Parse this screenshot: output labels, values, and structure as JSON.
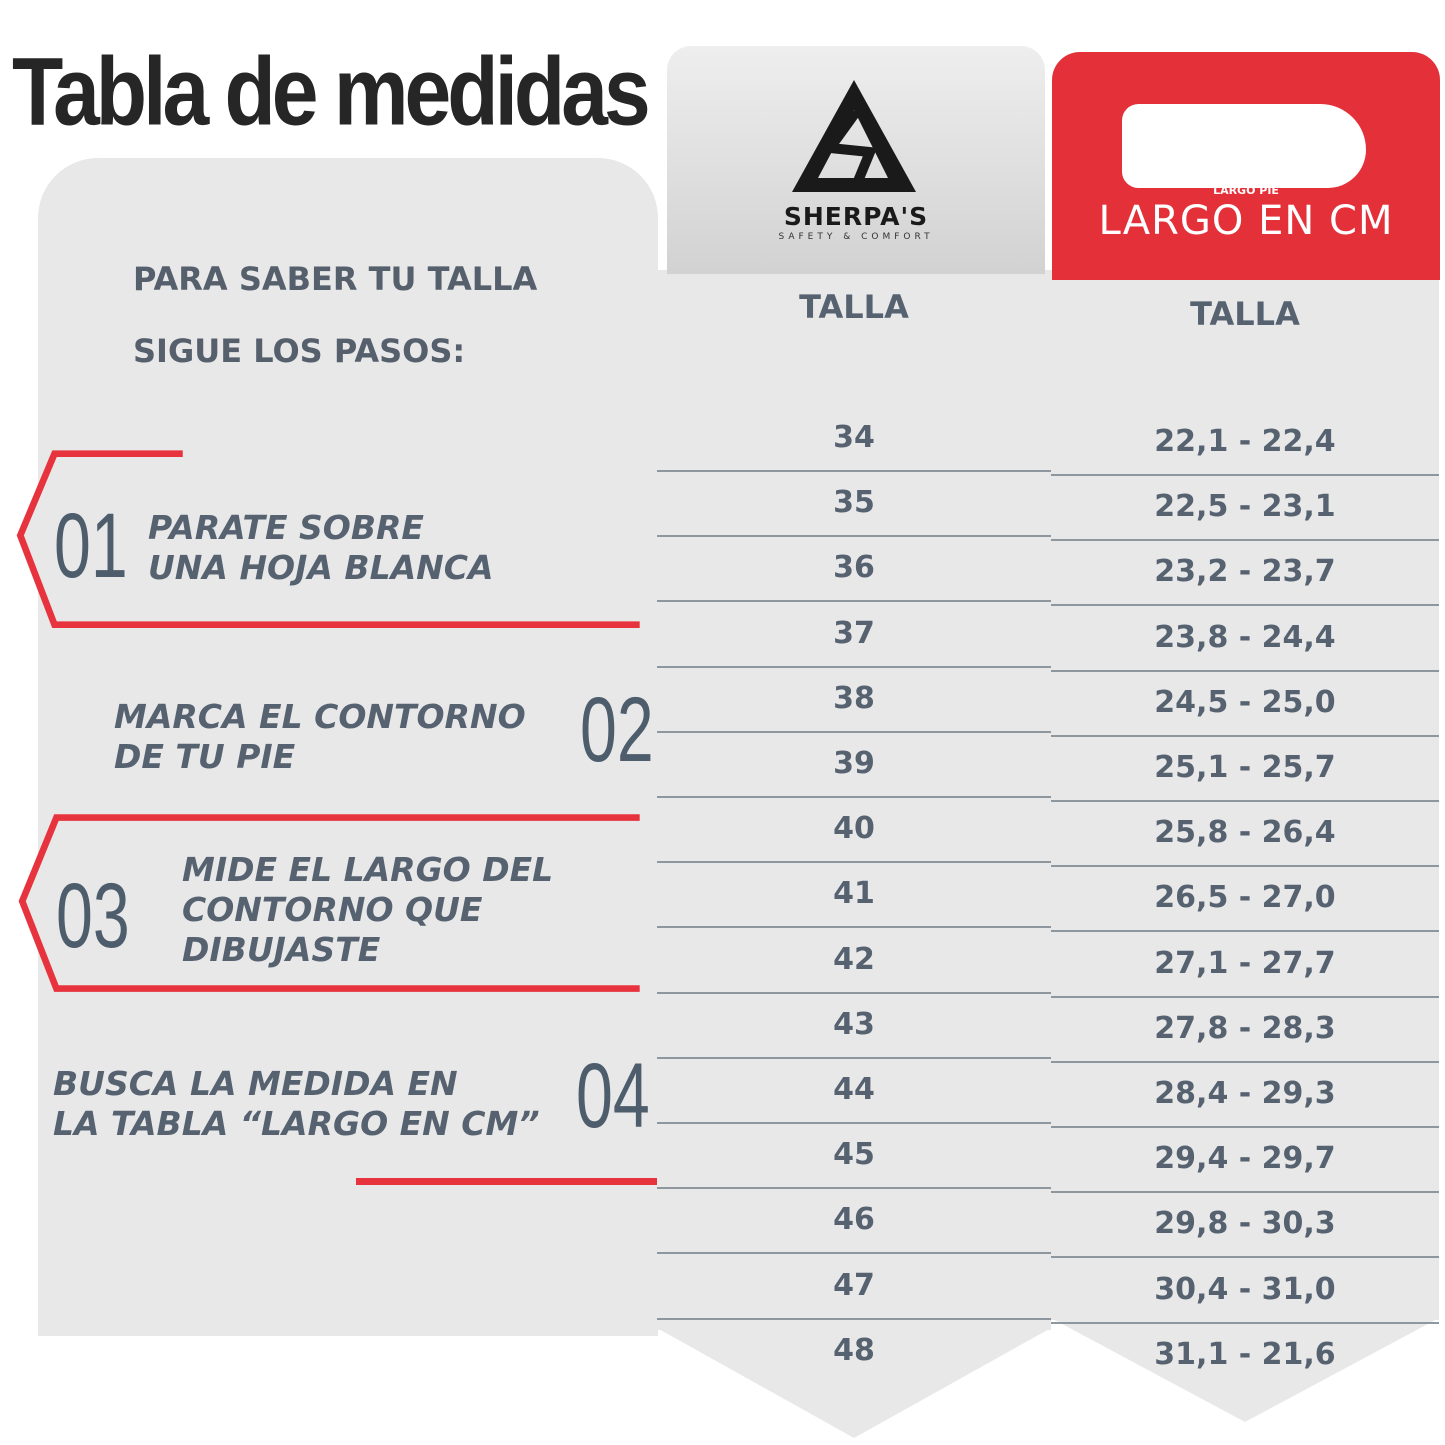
{
  "title": "Tabla de medidas",
  "intro": {
    "line1": "PARA SABER TU TALLA",
    "line2": "SIGUE LOS PASOS:"
  },
  "steps": [
    {
      "number": "01",
      "line1": "PARATE SOBRE",
      "line2": "UNA HOJA BLANCA"
    },
    {
      "number": "02",
      "line1": "MARCA EL CONTORNO",
      "line2": "DE TU PIE"
    },
    {
      "number": "03",
      "line1": "MIDE EL LARGO DEL",
      "line2": "CONTORNO QUE",
      "line3": "DIBUJASTE"
    },
    {
      "number": "04",
      "line1": "BUSCA LA MEDIDA EN",
      "line2": "LA TABLA “LARGO EN CM”"
    }
  ],
  "logo": {
    "icon": "sherpas-triangle-logo-icon",
    "name": "SHERPA'S",
    "tagline": "SAFETY & COMFORT"
  },
  "largo_header": {
    "icon": "foot-outline-icon",
    "small": "LARGO PIE",
    "title": "LARGO EN CM"
  },
  "table": {
    "col1_header": "TALLA",
    "col2_header": "TALLA",
    "rows": [
      {
        "talla": "34",
        "largo": "22,1 - 22,4"
      },
      {
        "talla": "35",
        "largo": "22,5 - 23,1"
      },
      {
        "talla": "36",
        "largo": "23,2 - 23,7"
      },
      {
        "talla": "37",
        "largo": "23,8 - 24,4"
      },
      {
        "talla": "38",
        "largo": "24,5 - 25,0"
      },
      {
        "talla": "39",
        "largo": "25,1 - 25,7"
      },
      {
        "talla": "40",
        "largo": "25,8 - 26,4"
      },
      {
        "talla": "41",
        "largo": "26,5 - 27,0"
      },
      {
        "talla": "42",
        "largo": "27,1 - 27,7"
      },
      {
        "talla": "43",
        "largo": "27,8 - 28,3"
      },
      {
        "talla": "44",
        "largo": "28,4 - 29,3"
      },
      {
        "talla": "45",
        "largo": "29,4 - 29,7"
      },
      {
        "talla": "46",
        "largo": "29,8 - 30,3"
      },
      {
        "talla": "47",
        "largo": "30,4 - 31,0"
      },
      {
        "talla": "48",
        "largo": "31,1 - 21,6"
      }
    ]
  },
  "colors": {
    "accent": "#e7333e",
    "text": "#566270",
    "panel": "#e8e8e9"
  }
}
